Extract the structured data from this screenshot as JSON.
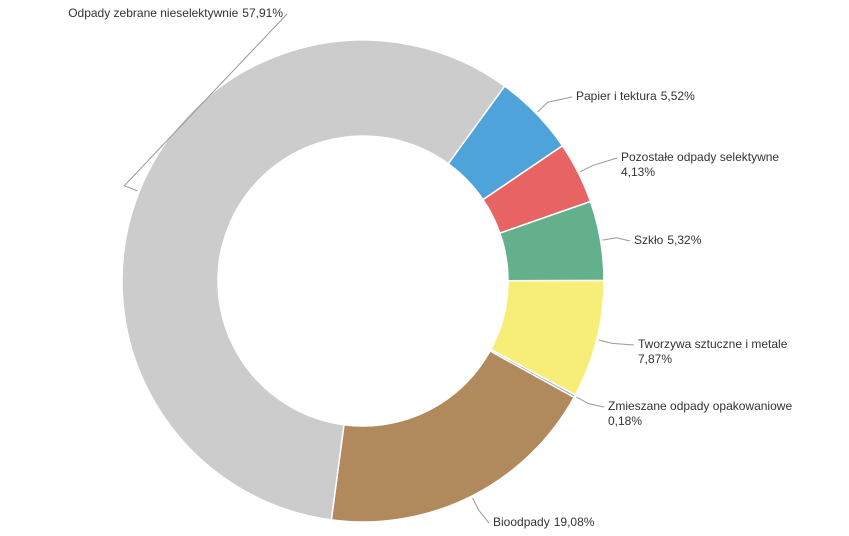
{
  "chart_data": {
    "type": "donut",
    "categories": [
      "Papier i tektura",
      "Pozostałe odpady selektywne",
      "Szkło",
      "Tworzywa sztuczne i metale",
      "Zmieszane odpady opakowaniowe",
      "Bioodpady",
      "Odpady zebrane nieselektywnie"
    ],
    "values": [
      5.52,
      4.13,
      5.32,
      7.87,
      0.18,
      19.08,
      57.91
    ],
    "value_labels": [
      "5,52%",
      "4,13%",
      "5,32%",
      "7,87%",
      "0,18%",
      "19,08%",
      "57,91%"
    ],
    "colors": [
      "#4fa3db",
      "#e86464",
      "#64b08c",
      "#f7ee78",
      "#9aa8b8",
      "#b0895c",
      "#cccccc"
    ]
  }
}
